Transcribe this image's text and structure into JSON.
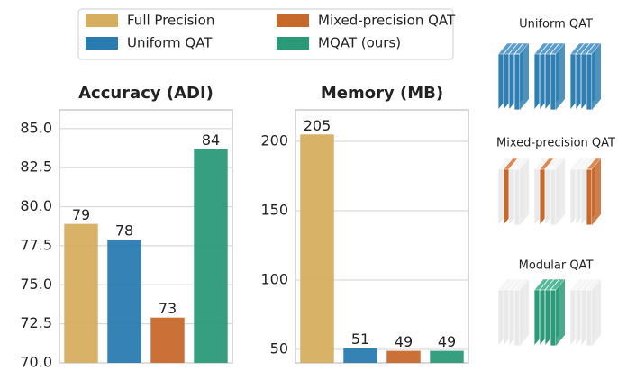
{
  "legend": {
    "entries": [
      {
        "name": "Full Precision",
        "color": "#d6ae5e"
      },
      {
        "name": "Uniform QAT",
        "color": "#2a7bb0"
      },
      {
        "name": "Mixed-precision QAT",
        "color": "#c8692c"
      },
      {
        "name": "MQAT (ours)",
        "color": "#2b9a78"
      }
    ]
  },
  "chart_data": [
    {
      "type": "bar",
      "title": "Accuracy (ADI)",
      "values": [
        78.9,
        77.9,
        72.9,
        83.7
      ],
      "value_labels": [
        "79",
        "78",
        "73",
        "84"
      ],
      "ylim": [
        70,
        86.2
      ],
      "yticks": [
        {
          "value": 70,
          "label": "70.0"
        },
        72.5,
        {
          "value": 75,
          "label": "75.0"
        },
        77.5,
        {
          "value": 80,
          "label": "80.0"
        },
        82.5,
        {
          "value": 85,
          "label": "85.0"
        }
      ],
      "grid": true
    },
    {
      "type": "bar",
      "title": "Memory (MB)",
      "values": [
        205,
        51,
        49,
        49
      ],
      "ylim": [
        40.3,
        222.7
      ],
      "yticks": [
        50,
        100,
        150,
        200
      ],
      "grid": true
    }
  ],
  "illustrations": {
    "titles": [
      "Uniform QAT",
      "Mixed-precision QAT",
      "Modular QAT"
    ]
  }
}
